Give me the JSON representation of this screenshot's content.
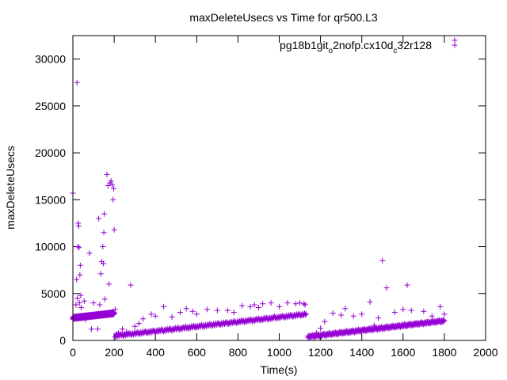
{
  "chart_data": {
    "type": "scatter",
    "title": "maxDeleteUsecs vs Time for qr500.L3",
    "xlabel": "Time(s)",
    "ylabel": "maxDeleteUsecs",
    "xlim": [
      0,
      2000
    ],
    "ylim": [
      0,
      32500
    ],
    "xticks": [
      0,
      200,
      400,
      600,
      800,
      1000,
      1200,
      1400,
      1600,
      1800,
      2000
    ],
    "yticks": [
      0,
      5000,
      10000,
      15000,
      20000,
      25000,
      30000
    ],
    "grid": false,
    "legend_position": "top-right",
    "marker": "+",
    "series": [
      {
        "name": "pg18b1git_o2nofp.cx10d_c32r128",
        "legend_main": "pg18b1git",
        "legend_sub1": "o",
        "legend_mid": "2nofp.cx10d",
        "legend_sub2": "c",
        "legend_end": "32r128",
        "color": "#9400d3",
        "points": [
          [
            0,
            15700
          ],
          [
            5,
            2500
          ],
          [
            10,
            2400
          ],
          [
            15,
            3800
          ],
          [
            18,
            6500
          ],
          [
            20,
            27500
          ],
          [
            22,
            4500
          ],
          [
            24,
            10000
          ],
          [
            26,
            12500
          ],
          [
            28,
            12200
          ],
          [
            30,
            9900
          ],
          [
            32,
            4000
          ],
          [
            34,
            7000
          ],
          [
            36,
            8000
          ],
          [
            38,
            4800
          ],
          [
            40,
            3500
          ],
          [
            45,
            2400
          ],
          [
            50,
            2500
          ],
          [
            55,
            4200
          ],
          [
            60,
            2200
          ],
          [
            70,
            2600
          ],
          [
            80,
            9300
          ],
          [
            90,
            1200
          ],
          [
            100,
            4000
          ],
          [
            110,
            2600
          ],
          [
            120,
            1200
          ],
          [
            125,
            13000
          ],
          [
            130,
            3800
          ],
          [
            135,
            7100
          ],
          [
            140,
            8400
          ],
          [
            145,
            10000
          ],
          [
            148,
            8200
          ],
          [
            150,
            11500
          ],
          [
            152,
            13500
          ],
          [
            155,
            4400
          ],
          [
            160,
            2700
          ],
          [
            165,
            17700
          ],
          [
            170,
            16500
          ],
          [
            175,
            6000
          ],
          [
            180,
            16800
          ],
          [
            185,
            17000
          ],
          [
            190,
            16600
          ],
          [
            195,
            15000
          ],
          [
            198,
            16200
          ],
          [
            200,
            11800
          ],
          [
            205,
            3300
          ],
          [
            210,
            700
          ],
          [
            220,
            800
          ],
          [
            240,
            1200
          ],
          [
            260,
            900
          ],
          [
            280,
            5900
          ],
          [
            300,
            1500
          ],
          [
            320,
            1800
          ],
          [
            340,
            2300
          ],
          [
            380,
            2800
          ],
          [
            400,
            2600
          ],
          [
            440,
            3600
          ],
          [
            480,
            2500
          ],
          [
            520,
            3000
          ],
          [
            550,
            3400
          ],
          [
            580,
            3100
          ],
          [
            600,
            2800
          ],
          [
            650,
            3300
          ],
          [
            700,
            3200
          ],
          [
            750,
            3200
          ],
          [
            780,
            3000
          ],
          [
            820,
            3700
          ],
          [
            860,
            3600
          ],
          [
            880,
            3800
          ],
          [
            900,
            3500
          ],
          [
            920,
            3900
          ],
          [
            960,
            4000
          ],
          [
            1000,
            3600
          ],
          [
            1040,
            4000
          ],
          [
            1080,
            3900
          ],
          [
            1100,
            4000
          ],
          [
            1120,
            3900
          ],
          [
            1125,
            3800
          ],
          [
            1140,
            500
          ],
          [
            1180,
            800
          ],
          [
            1200,
            1300
          ],
          [
            1220,
            2000
          ],
          [
            1260,
            2900
          ],
          [
            1300,
            2700
          ],
          [
            1320,
            3400
          ],
          [
            1360,
            2600
          ],
          [
            1400,
            2800
          ],
          [
            1440,
            4100
          ],
          [
            1460,
            1600
          ],
          [
            1480,
            2400
          ],
          [
            1500,
            8500
          ],
          [
            1520,
            5600
          ],
          [
            1560,
            3000
          ],
          [
            1600,
            3300
          ],
          [
            1620,
            5900
          ],
          [
            1640,
            3200
          ],
          [
            1700,
            3100
          ],
          [
            1740,
            2600
          ],
          [
            1780,
            3600
          ],
          [
            1800,
            2800
          ],
          [
            1850,
            32000
          ]
        ]
      }
    ]
  }
}
